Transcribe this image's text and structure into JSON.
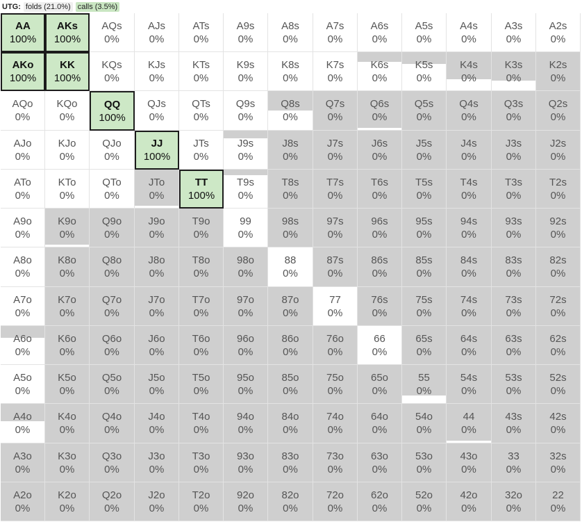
{
  "header": {
    "position": "UTG:",
    "folds_label": "folds (21.0%)",
    "calls_label": "calls (3.5%)"
  },
  "colors": {
    "call": "#cde8c6",
    "fold": "#cfcfcf",
    "unused": "#ffffff"
  },
  "grid": {
    "rows": [
      [
        {
          "hand": "AA",
          "pct": "100%",
          "action": "call"
        },
        {
          "hand": "AKs",
          "pct": "100%",
          "action": "call"
        },
        {
          "hand": "AQs",
          "pct": "0%",
          "fold": 0
        },
        {
          "hand": "AJs",
          "pct": "0%",
          "fold": 0
        },
        {
          "hand": "ATs",
          "pct": "0%",
          "fold": 0
        },
        {
          "hand": "A9s",
          "pct": "0%",
          "fold": 0
        },
        {
          "hand": "A8s",
          "pct": "0%",
          "fold": 0
        },
        {
          "hand": "A7s",
          "pct": "0%",
          "fold": 0
        },
        {
          "hand": "A6s",
          "pct": "0%",
          "fold": 0
        },
        {
          "hand": "A5s",
          "pct": "0%",
          "fold": 0
        },
        {
          "hand": "A4s",
          "pct": "0%",
          "fold": 0
        },
        {
          "hand": "A3s",
          "pct": "0%",
          "fold": 0
        },
        {
          "hand": "A2s",
          "pct": "0%",
          "fold": 0
        }
      ],
      [
        {
          "hand": "AKo",
          "pct": "100%",
          "action": "call"
        },
        {
          "hand": "KK",
          "pct": "100%",
          "action": "call"
        },
        {
          "hand": "KQs",
          "pct": "0%",
          "fold": 0
        },
        {
          "hand": "KJs",
          "pct": "0%",
          "fold": 0
        },
        {
          "hand": "KTs",
          "pct": "0%",
          "fold": 0
        },
        {
          "hand": "K9s",
          "pct": "0%",
          "fold": 0
        },
        {
          "hand": "K8s",
          "pct": "0%",
          "fold": 0
        },
        {
          "hand": "K7s",
          "pct": "0%",
          "fold": 0
        },
        {
          "hand": "K6s",
          "pct": "0%",
          "fold": 0.25
        },
        {
          "hand": "K5s",
          "pct": "0%",
          "fold": 0.3
        },
        {
          "hand": "K4s",
          "pct": "0%",
          "fold": 0.7
        },
        {
          "hand": "K3s",
          "pct": "0%",
          "fold": 0.75
        },
        {
          "hand": "K2s",
          "pct": "0%",
          "fold": 1
        }
      ],
      [
        {
          "hand": "AQo",
          "pct": "0%",
          "fold": 0
        },
        {
          "hand": "KQo",
          "pct": "0%",
          "fold": 0
        },
        {
          "hand": "QQ",
          "pct": "100%",
          "action": "call"
        },
        {
          "hand": "QJs",
          "pct": "0%",
          "fold": 0
        },
        {
          "hand": "QTs",
          "pct": "0%",
          "fold": 0
        },
        {
          "hand": "Q9s",
          "pct": "0%",
          "fold": 0
        },
        {
          "hand": "Q8s",
          "pct": "0%",
          "fold": 0.5
        },
        {
          "hand": "Q7s",
          "pct": "0%",
          "fold": 1
        },
        {
          "hand": "Q6s",
          "pct": "0%",
          "fold": 0.95
        },
        {
          "hand": "Q5s",
          "pct": "0%",
          "fold": 1
        },
        {
          "hand": "Q4s",
          "pct": "0%",
          "fold": 1
        },
        {
          "hand": "Q3s",
          "pct": "0%",
          "fold": 1
        },
        {
          "hand": "Q2s",
          "pct": "0%",
          "fold": 1
        }
      ],
      [
        {
          "hand": "AJo",
          "pct": "0%",
          "fold": 0
        },
        {
          "hand": "KJo",
          "pct": "0%",
          "fold": 0
        },
        {
          "hand": "QJo",
          "pct": "0%",
          "fold": 0
        },
        {
          "hand": "JJ",
          "pct": "100%",
          "action": "call"
        },
        {
          "hand": "JTs",
          "pct": "0%",
          "fold": 0
        },
        {
          "hand": "J9s",
          "pct": "0%",
          "fold": 0.2
        },
        {
          "hand": "J8s",
          "pct": "0%",
          "fold": 1
        },
        {
          "hand": "J7s",
          "pct": "0%",
          "fold": 1
        },
        {
          "hand": "J6s",
          "pct": "0%",
          "fold": 1
        },
        {
          "hand": "J5s",
          "pct": "0%",
          "fold": 1
        },
        {
          "hand": "J4s",
          "pct": "0%",
          "fold": 1
        },
        {
          "hand": "J3s",
          "pct": "0%",
          "fold": 1
        },
        {
          "hand": "J2s",
          "pct": "0%",
          "fold": 1
        }
      ],
      [
        {
          "hand": "ATo",
          "pct": "0%",
          "fold": 0
        },
        {
          "hand": "KTo",
          "pct": "0%",
          "fold": 0
        },
        {
          "hand": "QTo",
          "pct": "0%",
          "fold": 0
        },
        {
          "hand": "JTo",
          "pct": "0%",
          "fold": 0.95
        },
        {
          "hand": "TT",
          "pct": "100%",
          "action": "call"
        },
        {
          "hand": "T9s",
          "pct": "0%",
          "fold": 0.15
        },
        {
          "hand": "T8s",
          "pct": "0%",
          "fold": 1
        },
        {
          "hand": "T7s",
          "pct": "0%",
          "fold": 1
        },
        {
          "hand": "T6s",
          "pct": "0%",
          "fold": 1
        },
        {
          "hand": "T5s",
          "pct": "0%",
          "fold": 1
        },
        {
          "hand": "T4s",
          "pct": "0%",
          "fold": 1
        },
        {
          "hand": "T3s",
          "pct": "0%",
          "fold": 1
        },
        {
          "hand": "T2s",
          "pct": "0%",
          "fold": 1
        }
      ],
      [
        {
          "hand": "A9o",
          "pct": "0%",
          "fold": 0
        },
        {
          "hand": "K9o",
          "pct": "0%",
          "fold": 0.95
        },
        {
          "hand": "Q9o",
          "pct": "0%",
          "fold": 1
        },
        {
          "hand": "J9o",
          "pct": "0%",
          "fold": 1
        },
        {
          "hand": "T9o",
          "pct": "0%",
          "fold": 1
        },
        {
          "hand": "99",
          "pct": "0%",
          "fold": 0
        },
        {
          "hand": "98s",
          "pct": "0%",
          "fold": 1
        },
        {
          "hand": "97s",
          "pct": "0%",
          "fold": 1
        },
        {
          "hand": "96s",
          "pct": "0%",
          "fold": 1
        },
        {
          "hand": "95s",
          "pct": "0%",
          "fold": 1
        },
        {
          "hand": "94s",
          "pct": "0%",
          "fold": 1
        },
        {
          "hand": "93s",
          "pct": "0%",
          "fold": 1
        },
        {
          "hand": "92s",
          "pct": "0%",
          "fold": 1
        }
      ],
      [
        {
          "hand": "A8o",
          "pct": "0%",
          "fold": 0
        },
        {
          "hand": "K8o",
          "pct": "0%",
          "fold": 1
        },
        {
          "hand": "Q8o",
          "pct": "0%",
          "fold": 1
        },
        {
          "hand": "J8o",
          "pct": "0%",
          "fold": 1
        },
        {
          "hand": "T8o",
          "pct": "0%",
          "fold": 1
        },
        {
          "hand": "98o",
          "pct": "0%",
          "fold": 1
        },
        {
          "hand": "88",
          "pct": "0%",
          "fold": 0
        },
        {
          "hand": "87s",
          "pct": "0%",
          "fold": 1
        },
        {
          "hand": "86s",
          "pct": "0%",
          "fold": 1
        },
        {
          "hand": "85s",
          "pct": "0%",
          "fold": 1
        },
        {
          "hand": "84s",
          "pct": "0%",
          "fold": 1
        },
        {
          "hand": "83s",
          "pct": "0%",
          "fold": 1
        },
        {
          "hand": "82s",
          "pct": "0%",
          "fold": 1
        }
      ],
      [
        {
          "hand": "A7o",
          "pct": "0%",
          "fold": 0
        },
        {
          "hand": "K7o",
          "pct": "0%",
          "fold": 1
        },
        {
          "hand": "Q7o",
          "pct": "0%",
          "fold": 1
        },
        {
          "hand": "J7o",
          "pct": "0%",
          "fold": 1
        },
        {
          "hand": "T7o",
          "pct": "0%",
          "fold": 1
        },
        {
          "hand": "97o",
          "pct": "0%",
          "fold": 1
        },
        {
          "hand": "87o",
          "pct": "0%",
          "fold": 1
        },
        {
          "hand": "77",
          "pct": "0%",
          "fold": 0
        },
        {
          "hand": "76s",
          "pct": "0%",
          "fold": 1
        },
        {
          "hand": "75s",
          "pct": "0%",
          "fold": 1
        },
        {
          "hand": "74s",
          "pct": "0%",
          "fold": 1
        },
        {
          "hand": "73s",
          "pct": "0%",
          "fold": 1
        },
        {
          "hand": "72s",
          "pct": "0%",
          "fold": 1
        }
      ],
      [
        {
          "hand": "A6o",
          "pct": "0%",
          "fold": 0.3
        },
        {
          "hand": "K6o",
          "pct": "0%",
          "fold": 1
        },
        {
          "hand": "Q6o",
          "pct": "0%",
          "fold": 1
        },
        {
          "hand": "J6o",
          "pct": "0%",
          "fold": 1
        },
        {
          "hand": "T6o",
          "pct": "0%",
          "fold": 1
        },
        {
          "hand": "96o",
          "pct": "0%",
          "fold": 1
        },
        {
          "hand": "86o",
          "pct": "0%",
          "fold": 1
        },
        {
          "hand": "76o",
          "pct": "0%",
          "fold": 1
        },
        {
          "hand": "66",
          "pct": "0%",
          "fold": 0
        },
        {
          "hand": "65s",
          "pct": "0%",
          "fold": 1
        },
        {
          "hand": "64s",
          "pct": "0%",
          "fold": 1
        },
        {
          "hand": "63s",
          "pct": "0%",
          "fold": 1
        },
        {
          "hand": "62s",
          "pct": "0%",
          "fold": 1
        }
      ],
      [
        {
          "hand": "A5o",
          "pct": "0%",
          "fold": 0
        },
        {
          "hand": "K5o",
          "pct": "0%",
          "fold": 1
        },
        {
          "hand": "Q5o",
          "pct": "0%",
          "fold": 1
        },
        {
          "hand": "J5o",
          "pct": "0%",
          "fold": 1
        },
        {
          "hand": "T5o",
          "pct": "0%",
          "fold": 1
        },
        {
          "hand": "95o",
          "pct": "0%",
          "fold": 1
        },
        {
          "hand": "85o",
          "pct": "0%",
          "fold": 1
        },
        {
          "hand": "75o",
          "pct": "0%",
          "fold": 1
        },
        {
          "hand": "65o",
          "pct": "0%",
          "fold": 1
        },
        {
          "hand": "55",
          "pct": "0%",
          "fold": 0.8
        },
        {
          "hand": "54s",
          "pct": "0%",
          "fold": 1
        },
        {
          "hand": "53s",
          "pct": "0%",
          "fold": 1
        },
        {
          "hand": "52s",
          "pct": "0%",
          "fold": 1
        }
      ],
      [
        {
          "hand": "A4o",
          "pct": "0%",
          "fold": 0.45
        },
        {
          "hand": "K4o",
          "pct": "0%",
          "fold": 1
        },
        {
          "hand": "Q4o",
          "pct": "0%",
          "fold": 1
        },
        {
          "hand": "J4o",
          "pct": "0%",
          "fold": 1
        },
        {
          "hand": "T4o",
          "pct": "0%",
          "fold": 1
        },
        {
          "hand": "94o",
          "pct": "0%",
          "fold": 1
        },
        {
          "hand": "84o",
          "pct": "0%",
          "fold": 1
        },
        {
          "hand": "74o",
          "pct": "0%",
          "fold": 1
        },
        {
          "hand": "64o",
          "pct": "0%",
          "fold": 1
        },
        {
          "hand": "54o",
          "pct": "0%",
          "fold": 1
        },
        {
          "hand": "44",
          "pct": "0%",
          "fold": 0.95
        },
        {
          "hand": "43s",
          "pct": "0%",
          "fold": 1
        },
        {
          "hand": "42s",
          "pct": "0%",
          "fold": 1
        }
      ],
      [
        {
          "hand": "A3o",
          "pct": "0%",
          "fold": 1
        },
        {
          "hand": "K3o",
          "pct": "0%",
          "fold": 1
        },
        {
          "hand": "Q3o",
          "pct": "0%",
          "fold": 1
        },
        {
          "hand": "J3o",
          "pct": "0%",
          "fold": 1
        },
        {
          "hand": "T3o",
          "pct": "0%",
          "fold": 1
        },
        {
          "hand": "93o",
          "pct": "0%",
          "fold": 1
        },
        {
          "hand": "83o",
          "pct": "0%",
          "fold": 1
        },
        {
          "hand": "73o",
          "pct": "0%",
          "fold": 1
        },
        {
          "hand": "63o",
          "pct": "0%",
          "fold": 1
        },
        {
          "hand": "53o",
          "pct": "0%",
          "fold": 1
        },
        {
          "hand": "43o",
          "pct": "0%",
          "fold": 1
        },
        {
          "hand": "33",
          "pct": "0%",
          "fold": 1
        },
        {
          "hand": "32s",
          "pct": "0%",
          "fold": 1
        }
      ],
      [
        {
          "hand": "A2o",
          "pct": "0%",
          "fold": 1
        },
        {
          "hand": "K2o",
          "pct": "0%",
          "fold": 1
        },
        {
          "hand": "Q2o",
          "pct": "0%",
          "fold": 1
        },
        {
          "hand": "J2o",
          "pct": "0%",
          "fold": 1
        },
        {
          "hand": "T2o",
          "pct": "0%",
          "fold": 1
        },
        {
          "hand": "92o",
          "pct": "0%",
          "fold": 1
        },
        {
          "hand": "82o",
          "pct": "0%",
          "fold": 1
        },
        {
          "hand": "72o",
          "pct": "0%",
          "fold": 1
        },
        {
          "hand": "62o",
          "pct": "0%",
          "fold": 1
        },
        {
          "hand": "52o",
          "pct": "0%",
          "fold": 1
        },
        {
          "hand": "42o",
          "pct": "0%",
          "fold": 1
        },
        {
          "hand": "32o",
          "pct": "0%",
          "fold": 1
        },
        {
          "hand": "22",
          "pct": "0%",
          "fold": 1
        }
      ]
    ]
  }
}
